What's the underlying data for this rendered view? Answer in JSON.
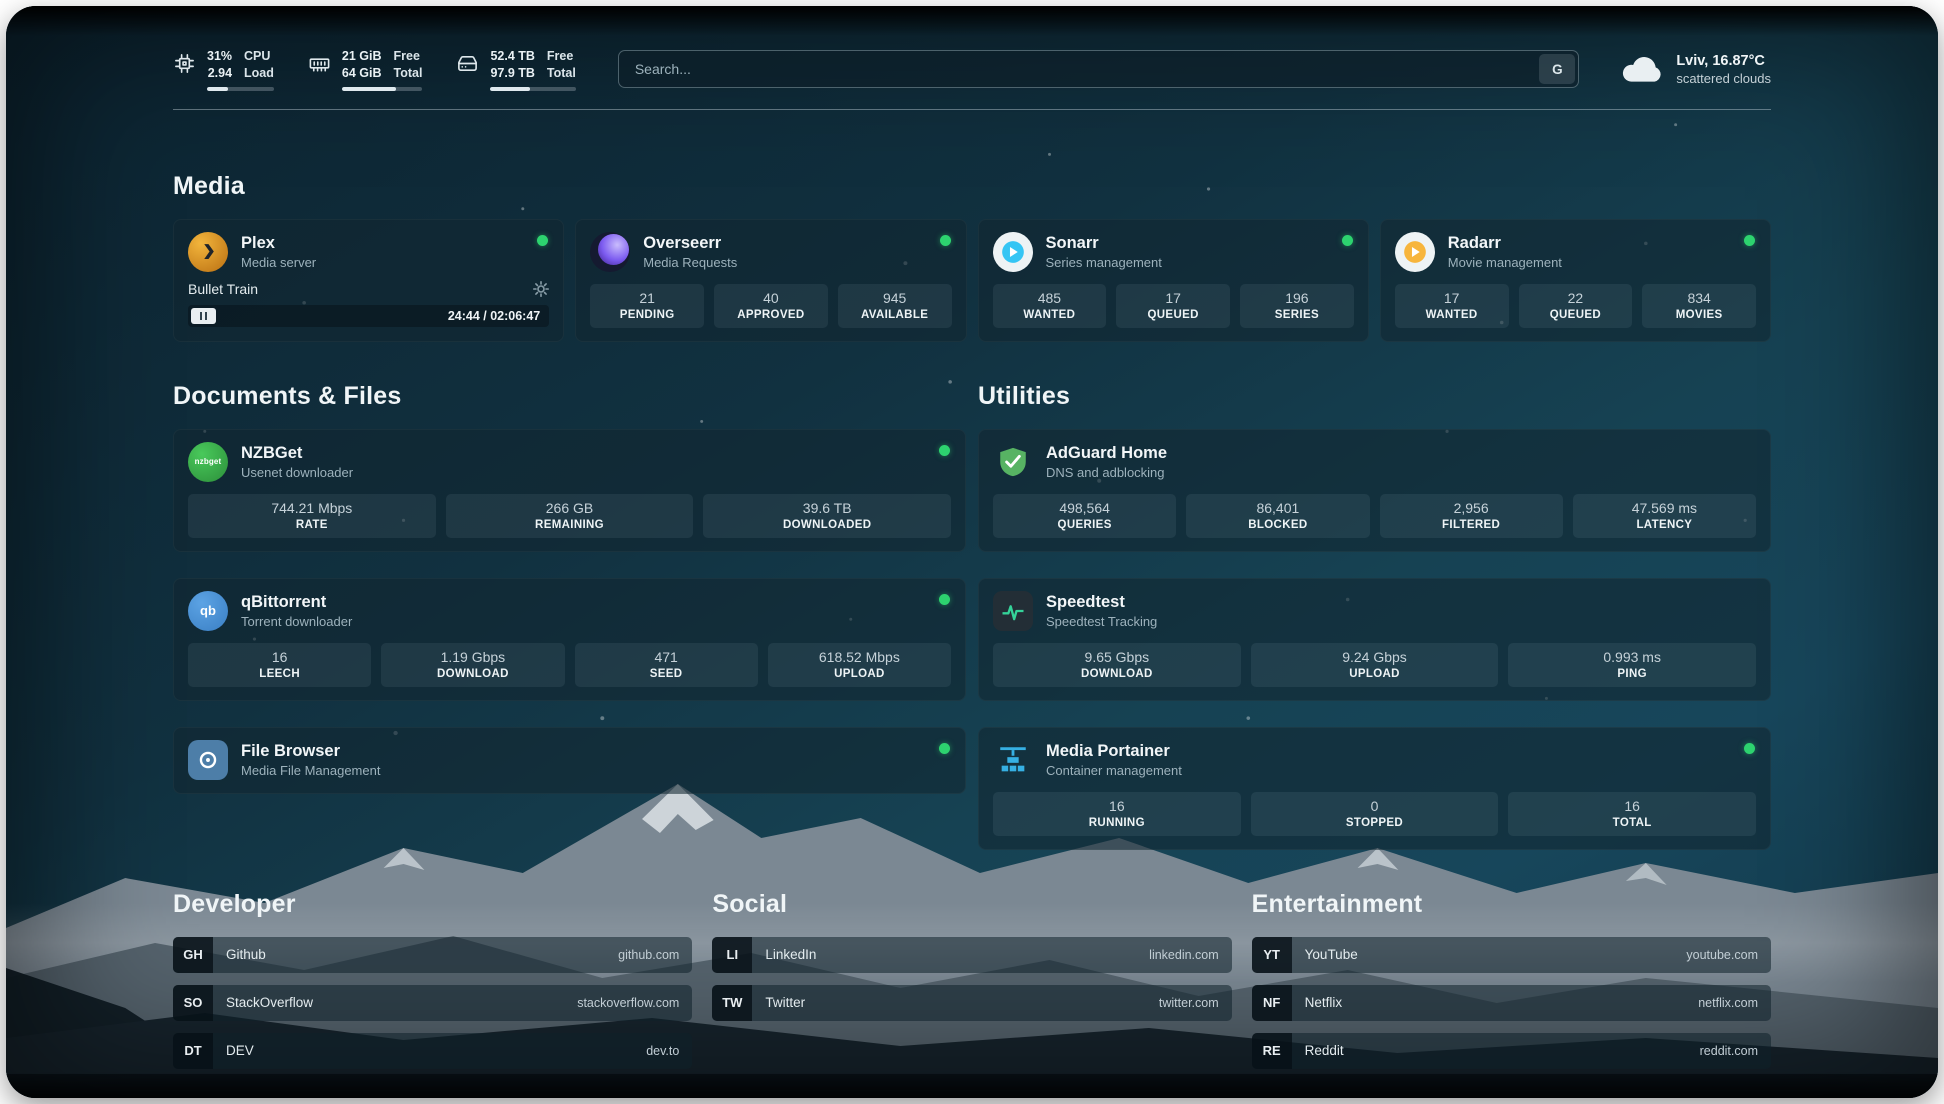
{
  "colors": {
    "status": "#2dd36f",
    "plex": "#e5a00d",
    "overseerr": "#7c5bf0",
    "sonarr": "#35c5f4",
    "radarr": "#f7b53c",
    "nzbget": "#3cb44a",
    "qbittorrent": "#3a7fc4",
    "filebrowser": "#4d7ea8",
    "adguard": "#57b363",
    "speedtest": "#34d399",
    "portainer": "#36b0e3"
  },
  "topbar": {
    "cpu": {
      "value": "31%",
      "label": "CPU",
      "value2": "2.94",
      "label2": "Load",
      "progress": 31
    },
    "memory": {
      "value": "21 GiB",
      "label": "Free",
      "value2": "64 GiB",
      "label2": "Total",
      "progress": 67
    },
    "disk": {
      "value": "52.4 TB",
      "label": "Free",
      "value2": "97.9 TB",
      "label2": "Total",
      "progress": 46
    },
    "search": {
      "placeholder": "Search...",
      "button": "G"
    },
    "weather": {
      "location": "Lviv, 16.87°C",
      "condition": "scattered clouds"
    }
  },
  "groups": {
    "media": {
      "title": "Media",
      "services": [
        {
          "id": "plex",
          "name": "Plex",
          "desc": "Media server",
          "online": true,
          "player": {
            "title": "Bullet Train",
            "time": "24:44 / 02:06:47"
          }
        },
        {
          "id": "overseerr",
          "name": "Overseerr",
          "desc": "Media Requests",
          "online": true,
          "stats": [
            {
              "value": "21",
              "label": "PENDING"
            },
            {
              "value": "40",
              "label": "APPROVED"
            },
            {
              "value": "945",
              "label": "AVAILABLE"
            }
          ]
        },
        {
          "id": "sonarr",
          "name": "Sonarr",
          "desc": "Series management",
          "online": true,
          "stats": [
            {
              "value": "485",
              "label": "WANTED"
            },
            {
              "value": "17",
              "label": "QUEUED"
            },
            {
              "value": "196",
              "label": "SERIES"
            }
          ]
        },
        {
          "id": "radarr",
          "name": "Radarr",
          "desc": "Movie management",
          "online": true,
          "stats": [
            {
              "value": "17",
              "label": "WANTED"
            },
            {
              "value": "22",
              "label": "QUEUED"
            },
            {
              "value": "834",
              "label": "MOVIES"
            }
          ]
        }
      ]
    },
    "documents": {
      "title": "Documents & Files",
      "services": [
        {
          "id": "nzbget",
          "name": "NZBGet",
          "desc": "Usenet downloader",
          "online": true,
          "stats": [
            {
              "value": "744.21 Mbps",
              "label": "RATE"
            },
            {
              "value": "266 GB",
              "label": "REMAINING"
            },
            {
              "value": "39.6 TB",
              "label": "DOWNLOADED"
            }
          ]
        },
        {
          "id": "qbittorrent",
          "name": "qBittorrent",
          "desc": "Torrent downloader",
          "online": true,
          "stats": [
            {
              "value": "16",
              "label": "LEECH"
            },
            {
              "value": "1.19 Gbps",
              "label": "DOWNLOAD"
            },
            {
              "value": "471",
              "label": "SEED"
            },
            {
              "value": "618.52 Mbps",
              "label": "UPLOAD"
            }
          ]
        },
        {
          "id": "filebrowser",
          "name": "File Browser",
          "desc": "Media File Management",
          "online": true
        }
      ]
    },
    "utilities": {
      "title": "Utilities",
      "services": [
        {
          "id": "adguard",
          "name": "AdGuard Home",
          "desc": "DNS and adblocking",
          "online": false,
          "stats": [
            {
              "value": "498,564",
              "label": "QUERIES"
            },
            {
              "value": "86,401",
              "label": "BLOCKED"
            },
            {
              "value": "2,956",
              "label": "FILTERED"
            },
            {
              "value": "47.569 ms",
              "label": "LATENCY"
            }
          ]
        },
        {
          "id": "speedtest",
          "name": "Speedtest",
          "desc": "Speedtest Tracking",
          "online": false,
          "stats": [
            {
              "value": "9.65 Gbps",
              "label": "DOWNLOAD"
            },
            {
              "value": "9.24 Gbps",
              "label": "UPLOAD"
            },
            {
              "value": "0.993 ms",
              "label": "PING"
            }
          ]
        },
        {
          "id": "portainer",
          "name": "Media Portainer",
          "desc": "Container management",
          "online": true,
          "stats": [
            {
              "value": "16",
              "label": "RUNNING"
            },
            {
              "value": "0",
              "label": "STOPPED"
            },
            {
              "value": "16",
              "label": "TOTAL"
            }
          ]
        }
      ]
    }
  },
  "bookmarks": [
    {
      "title": "Developer",
      "links": [
        {
          "abbr": "GH",
          "name": "Github",
          "href": "github.com"
        },
        {
          "abbr": "SO",
          "name": "StackOverflow",
          "href": "stackoverflow.com"
        },
        {
          "abbr": "DT",
          "name": "DEV",
          "href": "dev.to"
        }
      ]
    },
    {
      "title": "Social",
      "links": [
        {
          "abbr": "LI",
          "name": "LinkedIn",
          "href": "linkedin.com"
        },
        {
          "abbr": "TW",
          "name": "Twitter",
          "href": "twitter.com"
        }
      ]
    },
    {
      "title": "Entertainment",
      "links": [
        {
          "abbr": "YT",
          "name": "YouTube",
          "href": "youtube.com"
        },
        {
          "abbr": "NF",
          "name": "Netflix",
          "href": "netflix.com"
        },
        {
          "abbr": "RE",
          "name": "Reddit",
          "href": "reddit.com"
        }
      ]
    }
  ]
}
